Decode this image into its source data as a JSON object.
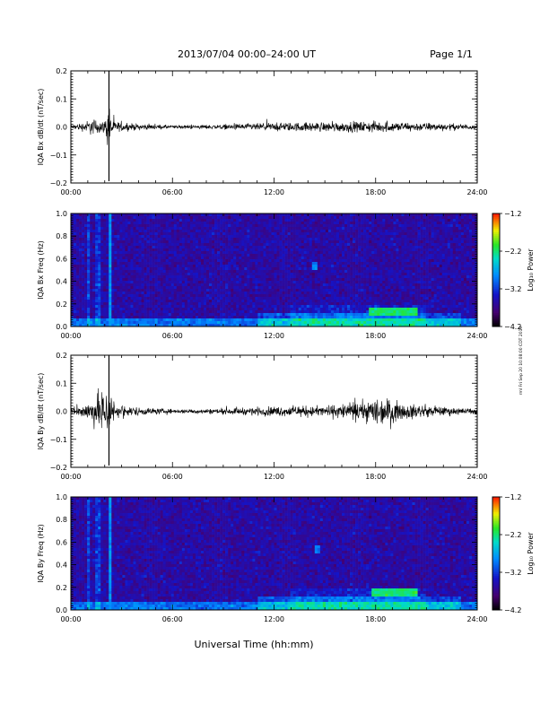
{
  "header": {
    "title": "2013/07/04  00:00–24:00 UT",
    "page": "Page 1/1"
  },
  "footer": {
    "xlabel": "Universal Time (hh:mm)",
    "side_note": "rml Fri Sep 20 10:08:00 CDT 2019"
  },
  "chart_data": [
    {
      "type": "line",
      "id": "bx-waveform",
      "ylabel": "IQA Bx dB/dt (nT/sec)",
      "x_ticks": [
        "00:00",
        "06:00",
        "12:00",
        "18:00",
        "24:00"
      ],
      "y_ticks": [
        "0.2",
        "0.1",
        "0.0",
        "−0.1",
        "−0.2"
      ],
      "ylim": [
        -0.2,
        0.2
      ],
      "xlim_hours": [
        0,
        24
      ],
      "envelope": [
        {
          "t": 0.0,
          "amp": 0.015
        },
        {
          "t": 0.8,
          "amp": 0.035
        },
        {
          "t": 1.2,
          "amp": 0.06
        },
        {
          "t": 2.0,
          "amp": 0.04
        },
        {
          "t": 2.25,
          "amp": 0.2
        },
        {
          "t": 2.5,
          "amp": 0.04
        },
        {
          "t": 3.5,
          "amp": 0.025
        },
        {
          "t": 6.0,
          "amp": 0.012
        },
        {
          "t": 9.0,
          "amp": 0.018
        },
        {
          "t": 12.0,
          "amp": 0.03
        },
        {
          "t": 15.0,
          "amp": 0.035
        },
        {
          "t": 18.0,
          "amp": 0.04
        },
        {
          "t": 21.0,
          "amp": 0.03
        },
        {
          "t": 24.0,
          "amp": 0.018
        }
      ]
    },
    {
      "type": "heatmap",
      "id": "bx-spectrogram",
      "ylabel": "IQA Bx Freq (Hz)",
      "x_ticks": [
        "00:00",
        "06:00",
        "12:00",
        "18:00",
        "24:00"
      ],
      "y_ticks": [
        "1.0",
        "0.8",
        "0.6",
        "0.4",
        "0.2",
        "0.0"
      ],
      "ylim": [
        0,
        1.0
      ],
      "xlim_hours": [
        0,
        24
      ],
      "colorbar": {
        "label": "Log₁₀ Power",
        "ticks": [
          "−1.2",
          "−2.2",
          "−3.2",
          "−4.2"
        ],
        "range": [
          -4.2,
          -1.2
        ]
      },
      "features": [
        {
          "t_start": 17.6,
          "t_end": 20.4,
          "f_low": 0.1,
          "f_high": 0.16,
          "level": -2.2
        },
        {
          "t_start": 14.3,
          "t_end": 14.6,
          "f_low": 0.5,
          "f_high": 0.58,
          "level": -2.9
        },
        {
          "t_start": 2.2,
          "t_end": 2.35,
          "f_low": 0.0,
          "f_high": 1.0,
          "level": -2.8
        }
      ]
    },
    {
      "type": "line",
      "id": "by-waveform",
      "ylabel": "IQA By dB/dt (nT/sec)",
      "x_ticks": [
        "00:00",
        "06:00",
        "12:00",
        "18:00",
        "24:00"
      ],
      "y_ticks": [
        "0.2",
        "0.1",
        "0.0",
        "−0.1",
        "−0.2"
      ],
      "ylim": [
        -0.2,
        0.2
      ],
      "xlim_hours": [
        0,
        24
      ],
      "envelope": [
        {
          "t": 0.0,
          "amp": 0.03
        },
        {
          "t": 0.8,
          "amp": 0.05
        },
        {
          "t": 1.3,
          "amp": 0.1
        },
        {
          "t": 2.25,
          "amp": 0.2
        },
        {
          "t": 2.6,
          "amp": 0.05
        },
        {
          "t": 4.0,
          "amp": 0.03
        },
        {
          "t": 6.0,
          "amp": 0.015
        },
        {
          "t": 9.0,
          "amp": 0.02
        },
        {
          "t": 12.0,
          "amp": 0.035
        },
        {
          "t": 15.0,
          "amp": 0.04
        },
        {
          "t": 17.2,
          "amp": 0.07
        },
        {
          "t": 18.3,
          "amp": 0.11
        },
        {
          "t": 19.5,
          "amp": 0.06
        },
        {
          "t": 21.5,
          "amp": 0.035
        },
        {
          "t": 24.0,
          "amp": 0.02
        }
      ]
    },
    {
      "type": "heatmap",
      "id": "by-spectrogram",
      "ylabel": "IQA By Freq (Hz)",
      "x_ticks": [
        "00:00",
        "06:00",
        "12:00",
        "18:00",
        "24:00"
      ],
      "y_ticks": [
        "1.0",
        "0.8",
        "0.6",
        "0.4",
        "0.2",
        "0.0"
      ],
      "ylim": [
        0,
        1.0
      ],
      "xlim_hours": [
        0,
        24
      ],
      "colorbar": {
        "label": "Log₁₀ Power",
        "ticks": [
          "−1.2",
          "−2.2",
          "−3.2",
          "−4.2"
        ],
        "range": [
          -4.2,
          -1.2
        ]
      },
      "features": [
        {
          "t_start": 17.7,
          "t_end": 20.5,
          "f_low": 0.12,
          "f_high": 0.18,
          "level": -2.2
        },
        {
          "t_start": 14.4,
          "t_end": 14.7,
          "f_low": 0.5,
          "f_high": 0.58,
          "level": -2.9
        },
        {
          "t_start": 2.2,
          "t_end": 2.35,
          "f_low": 0.0,
          "f_high": 1.0,
          "level": -2.8
        }
      ]
    }
  ]
}
